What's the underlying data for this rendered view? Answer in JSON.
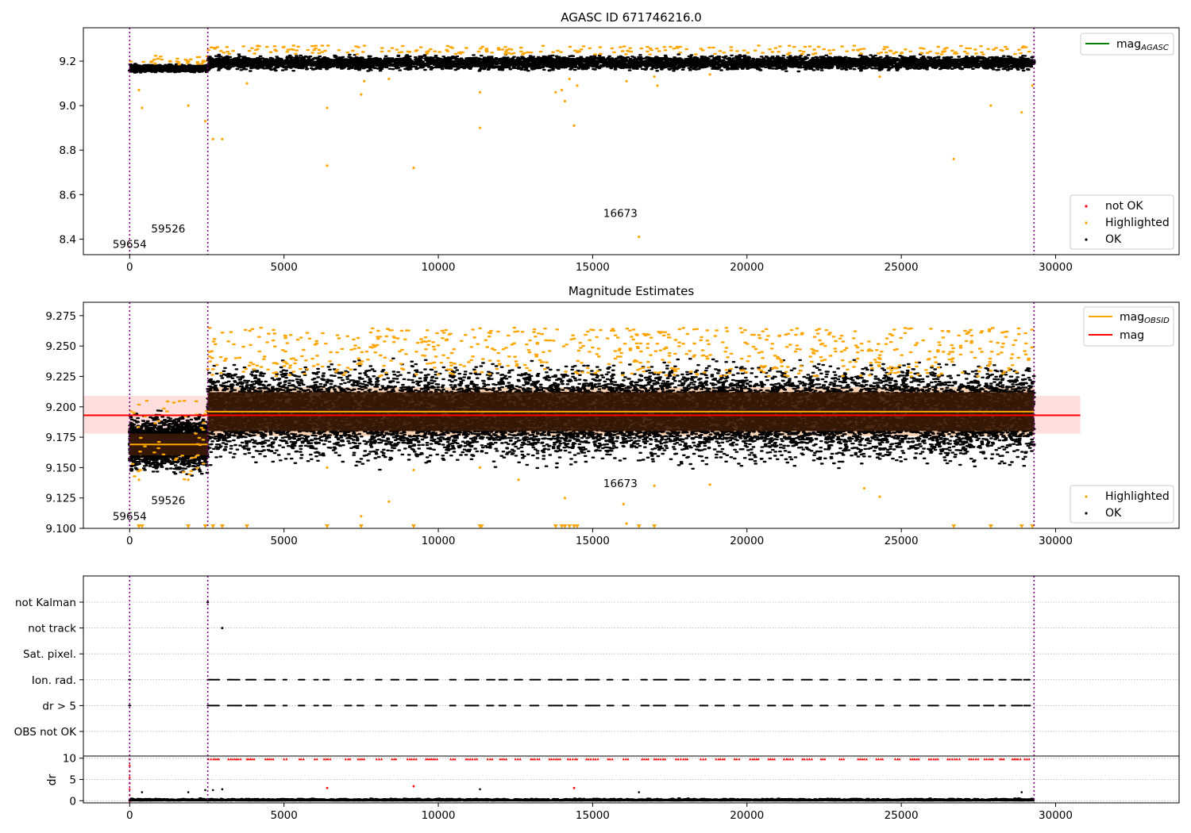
{
  "chart_data": [
    {
      "type": "scatter",
      "title": "AGASC ID 671746216.0",
      "xlim": [
        -1500,
        34000
      ],
      "ylim": [
        8.33,
        9.35
      ],
      "yticks": [
        "8.4",
        "8.6",
        "8.8",
        "9.0",
        "9.2"
      ],
      "xticks": [
        "0",
        "5000",
        "10000",
        "15000",
        "20000",
        "25000",
        "30000"
      ],
      "vlines": [
        0,
        2530,
        29300
      ],
      "annotations": [
        {
          "text": "59654",
          "x": 0,
          "y": 8.36
        },
        {
          "text": "59526",
          "x": 1250,
          "y": 8.43
        },
        {
          "text": "16673",
          "x": 15900,
          "y": 8.5
        }
      ],
      "legend_line": {
        "label": "mag",
        "subscript": "AGASC",
        "color": "#008000"
      },
      "legend_points": [
        {
          "label": "not OK",
          "color": "#ff0000"
        },
        {
          "label": "Highlighted",
          "color": "#ffa500"
        },
        {
          "label": "OK",
          "color": "#000000"
        }
      ],
      "bands": [
        {
          "name": "ok",
          "x0": 0,
          "x1": 2530,
          "ymin": 9.145,
          "ymax": 9.19,
          "color": "#000000"
        },
        {
          "name": "ok",
          "x0": 2530,
          "x1": 29300,
          "ymin": 9.15,
          "ymax": 9.235,
          "color": "#000000"
        }
      ],
      "highlighted_outliers": [
        [
          300,
          9.07
        ],
        [
          400,
          8.99
        ],
        [
          1900,
          9.0
        ],
        [
          2450,
          8.93
        ],
        [
          2700,
          8.85
        ],
        [
          3000,
          8.85
        ],
        [
          3800,
          9.1
        ],
        [
          6400,
          8.99
        ],
        [
          6400,
          8.73
        ],
        [
          7500,
          9.05
        ],
        [
          7600,
          9.11
        ],
        [
          8400,
          9.12
        ],
        [
          9200,
          8.72
        ],
        [
          11350,
          9.06
        ],
        [
          11350,
          8.9
        ],
        [
          13800,
          9.06
        ],
        [
          14000,
          9.07
        ],
        [
          14100,
          9.02
        ],
        [
          14250,
          9.12
        ],
        [
          14400,
          8.91
        ],
        [
          14500,
          9.09
        ],
        [
          16100,
          9.11
        ],
        [
          16500,
          8.41
        ],
        [
          17000,
          9.13
        ],
        [
          17100,
          9.09
        ],
        [
          18800,
          9.14
        ],
        [
          24300,
          9.13
        ],
        [
          26700,
          8.76
        ],
        [
          27900,
          9.0
        ],
        [
          28900,
          8.97
        ],
        [
          29250,
          9.09
        ]
      ]
    },
    {
      "type": "scatter",
      "title": "Magnitude Estimates",
      "xlim": [
        -1500,
        34000
      ],
      "ylim": [
        9.1,
        9.286
      ],
      "yticks": [
        "9.100",
        "9.125",
        "9.150",
        "9.175",
        "9.200",
        "9.225",
        "9.250",
        "9.275"
      ],
      "xticks": [
        "0",
        "5000",
        "10000",
        "15000",
        "20000",
        "25000",
        "30000"
      ],
      "vlines": [
        0,
        2530,
        29300
      ],
      "annotations": [
        {
          "text": "59654",
          "x": 0,
          "y": 9.107
        },
        {
          "text": "59526",
          "x": 1250,
          "y": 9.12
        },
        {
          "text": "16673",
          "x": 15900,
          "y": 9.134
        }
      ],
      "legend_lines": [
        {
          "label": "mag",
          "subscript": "OBSID",
          "color": "#ffa500"
        },
        {
          "label": "mag",
          "subscript": "",
          "color": "#ff0000"
        }
      ],
      "legend_points": [
        {
          "label": "Highlighted",
          "color": "#ffa500"
        },
        {
          "label": "OK",
          "color": "#000000"
        }
      ],
      "mag": {
        "value": 9.193,
        "band": [
          9.178,
          9.209
        ],
        "xrange": [
          -1500,
          30800
        ],
        "color": "#ff0000"
      },
      "mag_obsid": [
        {
          "x0": 0,
          "x1": 2530,
          "value": 9.169
        },
        {
          "x0": 2530,
          "x1": 29300,
          "value": 9.196
        }
      ],
      "std_bands": [
        {
          "x0": 0,
          "x1": 2530,
          "ymin": 9.16,
          "ymax": 9.178
        },
        {
          "x0": 2530,
          "x1": 29300,
          "ymin": 9.18,
          "ymax": 9.212
        }
      ],
      "clipped_markers_x": [
        300,
        400,
        1900,
        2450,
        2700,
        3000,
        3800,
        6400,
        7500,
        9200,
        11350,
        11400,
        13800,
        14000,
        14100,
        14250,
        14400,
        14500,
        16500,
        17000,
        26700,
        27900,
        28900,
        29250
      ]
    },
    {
      "type": "scatter",
      "xlim": [
        -1500,
        34000
      ],
      "categories": [
        "not Kalman",
        "not track",
        "Sat. pixel.",
        "Ion. rad.",
        "dr > 5",
        "OBS not OK"
      ],
      "xticks": [
        "0",
        "5000",
        "10000",
        "15000",
        "20000",
        "25000",
        "30000"
      ],
      "dr_ylabel": "dr",
      "dr_ylim": [
        -0.5,
        10.5
      ],
      "dr_yticks": [
        "0",
        "5",
        "10"
      ],
      "flag_points": [
        [
          2530,
          "not Kalman"
        ],
        [
          3000,
          "not track"
        ]
      ],
      "flag_segments": [
        [
          2550,
          2900
        ],
        [
          3200,
          3600
        ],
        [
          3800,
          4100
        ],
        [
          4400,
          4700
        ],
        [
          5000,
          5100
        ],
        [
          5500,
          5700
        ],
        [
          6000,
          6100
        ],
        [
          6300,
          6500
        ],
        [
          7000,
          7200
        ],
        [
          7400,
          7600
        ],
        [
          8000,
          8200
        ],
        [
          8500,
          8700
        ],
        [
          9000,
          9300
        ],
        [
          9600,
          10000
        ],
        [
          10400,
          10600
        ],
        [
          10900,
          11300
        ],
        [
          11600,
          11800
        ],
        [
          12000,
          12200
        ],
        [
          12500,
          12700
        ],
        [
          13000,
          13300
        ],
        [
          13600,
          14000
        ],
        [
          14200,
          14500
        ],
        [
          14800,
          15200
        ],
        [
          15500,
          15700
        ],
        [
          16000,
          16200
        ],
        [
          16600,
          16800
        ],
        [
          17000,
          17400
        ],
        [
          17700,
          18100
        ],
        [
          18500,
          18700
        ],
        [
          19000,
          19300
        ],
        [
          19600,
          19800
        ],
        [
          20100,
          20400
        ],
        [
          20700,
          20900
        ],
        [
          21200,
          21500
        ],
        [
          21800,
          22100
        ],
        [
          22400,
          22600
        ],
        [
          23000,
          23200
        ],
        [
          23600,
          23900
        ],
        [
          24200,
          24400
        ],
        [
          24800,
          25000
        ],
        [
          25300,
          25600
        ],
        [
          25900,
          26200
        ],
        [
          26500,
          26900
        ],
        [
          27200,
          27500
        ],
        [
          27700,
          28000
        ],
        [
          28200,
          28400
        ],
        [
          28600,
          28900
        ],
        [
          29000,
          29200
        ]
      ],
      "dr_outliers_not_ok": [
        [
          6400,
          3.0
        ],
        [
          9200,
          3.4
        ],
        [
          14400,
          3.0
        ]
      ],
      "dr_outliers_ok": [
        [
          400,
          2.0
        ],
        [
          1900,
          2.0
        ],
        [
          2450,
          2.5
        ],
        [
          2700,
          2.5
        ],
        [
          3000,
          2.7
        ],
        [
          11350,
          2.7
        ],
        [
          16500,
          2.0
        ],
        [
          28900,
          2.0
        ]
      ]
    }
  ],
  "colors": {
    "ok": "#000000",
    "highlighted": "#ffa500",
    "not_ok": "#ff0000",
    "vline": "#800080",
    "mag_band": "#ffdede",
    "std_band": "#3a1a05",
    "std_band_light": "#f9d2b4"
  }
}
